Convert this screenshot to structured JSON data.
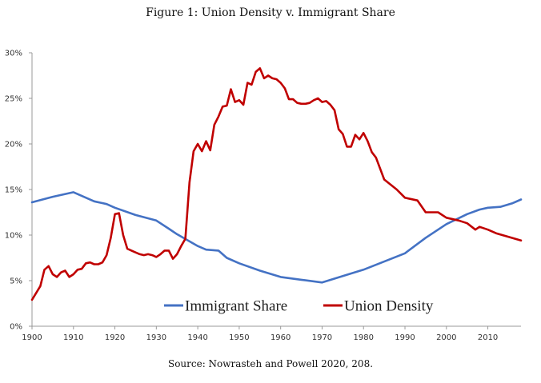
{
  "figure": {
    "title": "Figure 1: Union Density v. Immigrant Share",
    "source": "Source: Nowrasteh and Powell 2020, 208."
  },
  "chart_data": {
    "type": "line",
    "title": "Figure 1: Union Density v. Immigrant Share",
    "xlabel": "",
    "ylabel": "",
    "xlim": [
      1900,
      2018
    ],
    "ylim": [
      0,
      30
    ],
    "x_ticks": [
      1900,
      1910,
      1920,
      1930,
      1940,
      1950,
      1960,
      1970,
      1980,
      1990,
      2000,
      2010
    ],
    "y_ticks": [
      0,
      5,
      10,
      15,
      20,
      25,
      30
    ],
    "y_tick_labels": [
      "0%",
      "5%",
      "10%",
      "15%",
      "20%",
      "25%",
      "30%"
    ],
    "grid": false,
    "legend_position": "bottom-center",
    "series": [
      {
        "name": "Immigrant Share",
        "color": "#4472C4",
        "x": [
          1900,
          1905,
          1910,
          1915,
          1918,
          1920,
          1925,
          1930,
          1933,
          1935,
          1940,
          1942,
          1945,
          1947,
          1950,
          1955,
          1960,
          1965,
          1970,
          1975,
          1980,
          1985,
          1990,
          1995,
          2000,
          2005,
          2008,
          2010,
          2013,
          2016,
          2018
        ],
        "values": [
          13.6,
          14.2,
          14.7,
          13.7,
          13.4,
          13.0,
          12.2,
          11.6,
          10.7,
          10.1,
          8.8,
          8.4,
          8.3,
          7.5,
          6.9,
          6.1,
          5.4,
          5.1,
          4.8,
          5.5,
          6.2,
          7.1,
          8.0,
          9.7,
          11.2,
          12.3,
          12.8,
          13.0,
          13.1,
          13.5,
          13.9
        ]
      },
      {
        "name": "Union Density",
        "color": "#C00000",
        "x": [
          1900,
          1902,
          1903,
          1904,
          1905,
          1906,
          1907,
          1908,
          1909,
          1910,
          1911,
          1912,
          1913,
          1914,
          1915,
          1916,
          1917,
          1918,
          1919,
          1920,
          1921,
          1922,
          1923,
          1924,
          1925,
          1926,
          1927,
          1928,
          1929,
          1930,
          1931,
          1932,
          1933,
          1934,
          1935,
          1936,
          1937,
          1938,
          1939,
          1940,
          1941,
          1942,
          1943,
          1944,
          1945,
          1946,
          1947,
          1948,
          1949,
          1950,
          1951,
          1952,
          1953,
          1954,
          1955,
          1956,
          1957,
          1958,
          1959,
          1960,
          1961,
          1962,
          1963,
          1964,
          1965,
          1966,
          1967,
          1968,
          1969,
          1970,
          1971,
          1972,
          1973,
          1974,
          1975,
          1976,
          1977,
          1978,
          1979,
          1980,
          1981,
          1982,
          1983,
          1985,
          1988,
          1990,
          1993,
          1995,
          1998,
          2000,
          2003,
          2005,
          2007,
          2008,
          2010,
          2012,
          2015,
          2018
        ],
        "values": [
          2.9,
          4.4,
          6.2,
          6.6,
          5.7,
          5.4,
          5.9,
          6.1,
          5.4,
          5.7,
          6.2,
          6.3,
          6.9,
          7.0,
          6.8,
          6.8,
          7.0,
          7.8,
          9.7,
          12.3,
          12.4,
          10.0,
          8.5,
          8.3,
          8.1,
          7.9,
          7.8,
          7.9,
          7.8,
          7.6,
          7.9,
          8.3,
          8.3,
          7.4,
          7.9,
          8.8,
          9.6,
          15.8,
          19.2,
          20.0,
          19.2,
          20.3,
          19.3,
          22.1,
          23.0,
          24.1,
          24.2,
          26.0,
          24.6,
          24.8,
          24.3,
          26.7,
          26.5,
          27.9,
          28.3,
          27.2,
          27.5,
          27.2,
          27.1,
          26.7,
          26.1,
          24.9,
          24.9,
          24.5,
          24.4,
          24.4,
          24.5,
          24.8,
          25.0,
          24.6,
          24.7,
          24.3,
          23.7,
          21.6,
          21.1,
          19.7,
          19.7,
          21.0,
          20.5,
          21.2,
          20.3,
          19.1,
          18.5,
          16.1,
          15.0,
          14.1,
          13.8,
          12.5,
          12.5,
          11.9,
          11.6,
          11.3,
          10.6,
          10.9,
          10.6,
          10.2,
          9.8,
          9.4
        ]
      }
    ]
  }
}
